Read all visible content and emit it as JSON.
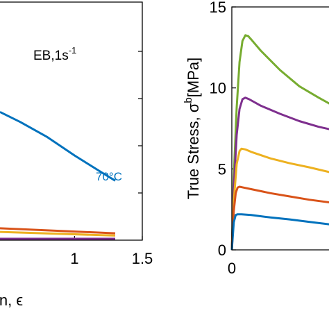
{
  "chart_data": [
    {
      "type": "line",
      "title": "",
      "xlabel": "in, ϵ",
      "ylabel": "",
      "xlim": [
        0.45,
        1.5
      ],
      "ylim": [
        0,
        5.2
      ],
      "xticks": [
        1,
        1.5
      ],
      "xtick_labels": [
        "1",
        "1.5"
      ],
      "annotation": "EB,1s",
      "annotation_sup": "-1",
      "series_label": "70°C",
      "series": [
        {
          "color": "#0072BD",
          "x": [
            0.45,
            0.6,
            0.8,
            1.0,
            1.2,
            1.3
          ],
          "y": [
            2.8,
            2.58,
            2.25,
            1.85,
            1.48,
            1.3
          ]
        },
        {
          "color": "#D95319",
          "x": [
            0.45,
            1.3
          ],
          "y": [
            0.26,
            0.15
          ]
        },
        {
          "color": "#EDB120",
          "x": [
            0.45,
            1.3
          ],
          "y": [
            0.18,
            0.1
          ]
        },
        {
          "color": "#7E2F8E",
          "x": [
            0.45,
            1.3
          ],
          "y": [
            0.03,
            0.03
          ]
        }
      ]
    },
    {
      "type": "line",
      "title": "",
      "xlabel": "",
      "ylabel": "True Stress, σ",
      "ylabel_sup": "b",
      "ylabel_tail": "[MPa]",
      "xlim": [
        0,
        1.05
      ],
      "ylim": [
        0,
        15
      ],
      "yticks": [
        0,
        5,
        10,
        15
      ],
      "ytick_labels": [
        "0",
        "5",
        "10",
        "15"
      ],
      "xticks": [
        0
      ],
      "xtick_labels": [
        "0"
      ],
      "series": [
        {
          "color": "#77AC30",
          "x": [
            0,
            0.02,
            0.05,
            0.08,
            0.11,
            0.14,
            0.17,
            0.2,
            0.3,
            0.5,
            0.7,
            0.9,
            1.05
          ],
          "y": [
            0,
            4.5,
            8.8,
            11.6,
            12.9,
            13.25,
            13.2,
            13.0,
            12.3,
            11.1,
            10.1,
            9.4,
            8.9
          ]
        },
        {
          "color": "#7E2F8E",
          "x": [
            0,
            0.02,
            0.05,
            0.08,
            0.11,
            0.14,
            0.18,
            0.3,
            0.5,
            0.7,
            0.9,
            1.05
          ],
          "y": [
            0,
            3.8,
            7.1,
            8.7,
            9.3,
            9.4,
            9.3,
            8.9,
            8.4,
            7.95,
            7.6,
            7.4
          ]
        },
        {
          "color": "#EDB120",
          "x": [
            0,
            0.02,
            0.05,
            0.08,
            0.1,
            0.14,
            0.2,
            0.4,
            0.6,
            0.8,
            1.05
          ],
          "y": [
            0,
            3.0,
            5.3,
            6.1,
            6.25,
            6.2,
            6.05,
            5.65,
            5.35,
            5.1,
            4.75
          ]
        },
        {
          "color": "#D95319",
          "x": [
            0,
            0.02,
            0.04,
            0.06,
            0.08,
            0.12,
            0.2,
            0.4,
            0.6,
            0.8,
            1.05
          ],
          "y": [
            0,
            2.4,
            3.5,
            3.85,
            3.9,
            3.85,
            3.75,
            3.5,
            3.3,
            3.1,
            2.9
          ]
        },
        {
          "color": "#0072BD",
          "x": [
            0,
            0.02,
            0.04,
            0.06,
            0.1,
            0.2,
            0.4,
            0.6,
            0.8,
            1.05
          ],
          "y": [
            0,
            1.7,
            2.15,
            2.2,
            2.2,
            2.15,
            2.0,
            1.88,
            1.73,
            1.55
          ]
        }
      ]
    }
  ]
}
